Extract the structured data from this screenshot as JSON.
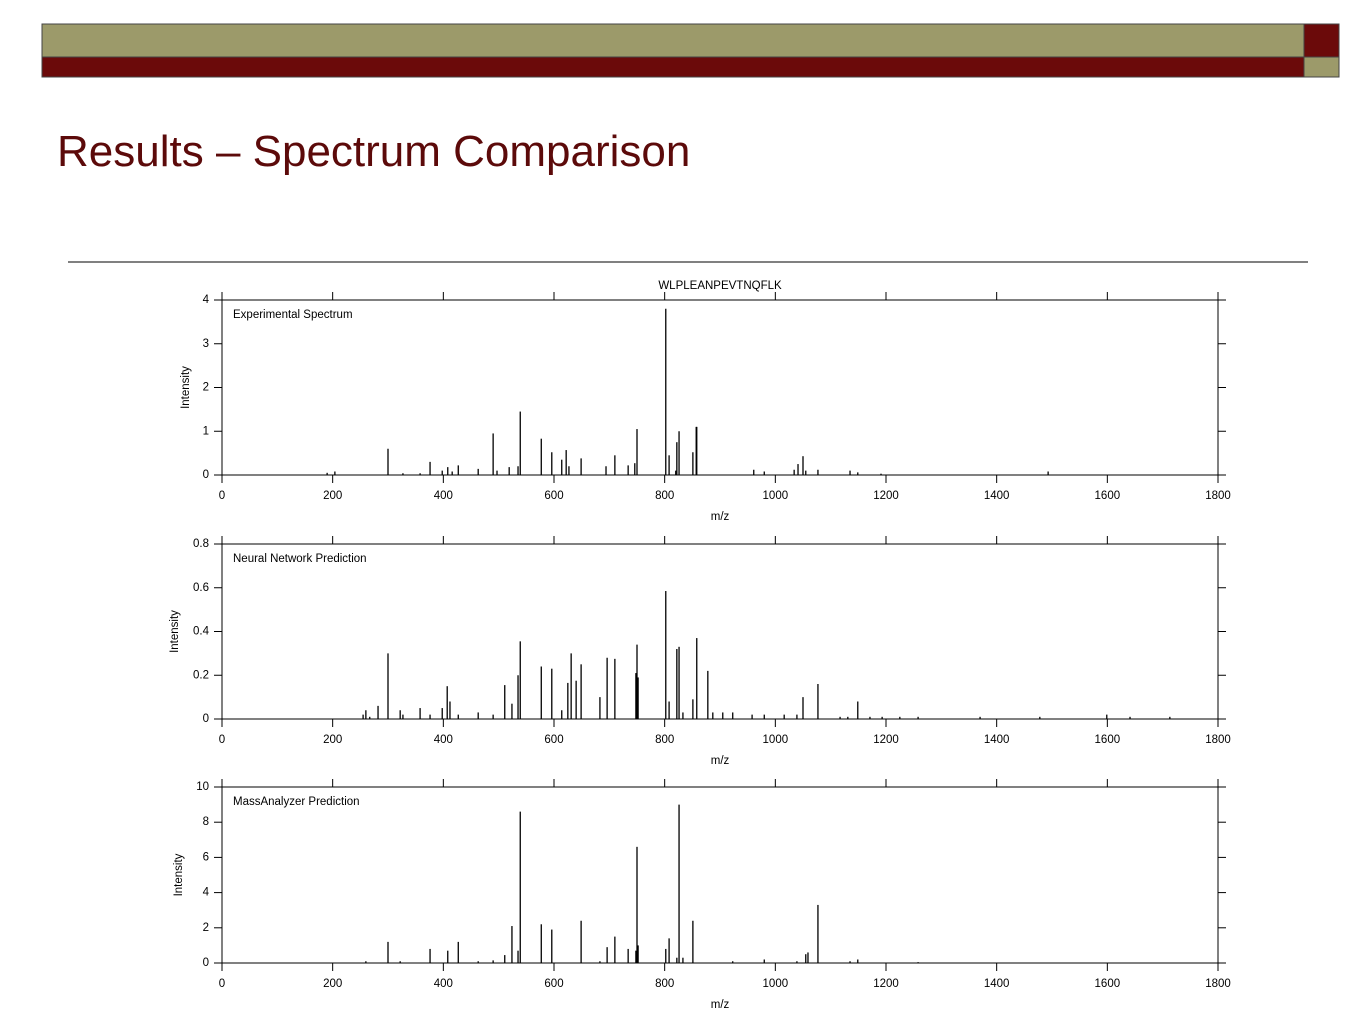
{
  "header": {
    "title": "Results – Spectrum Comparison"
  },
  "chart_data": [
    {
      "type": "stem",
      "title": "WLPLEANPEVTNQFLK",
      "annotation": "Experimental Spectrum",
      "x_label": "m/z",
      "y_label": "Intensity",
      "color": "#000000",
      "x": [
        190,
        204,
        300,
        327,
        358,
        376,
        398,
        408,
        416,
        427,
        463,
        490,
        497,
        519,
        535,
        539,
        577,
        596,
        614,
        622,
        627,
        649,
        694,
        710,
        734,
        746,
        750,
        802,
        808,
        820,
        822,
        826,
        851,
        857,
        858,
        961,
        980,
        1034,
        1041,
        1050,
        1055,
        1077,
        1135,
        1149,
        1191,
        1493
      ],
      "values": [
        0.05,
        0.08,
        0.6,
        0.04,
        0.04,
        0.3,
        0.1,
        0.18,
        0.08,
        0.22,
        0.14,
        0.95,
        0.1,
        0.18,
        0.2,
        1.45,
        0.83,
        0.52,
        0.35,
        0.57,
        0.2,
        0.38,
        0.2,
        0.45,
        0.22,
        0.27,
        1.05,
        3.8,
        0.45,
        0.1,
        0.75,
        1.0,
        0.52,
        1.1,
        1.1,
        0.12,
        0.08,
        0.12,
        0.25,
        0.43,
        0.1,
        0.12,
        0.1,
        0.06,
        0.03,
        0.08
      ],
      "xlim": [
        0,
        1800
      ],
      "xticks": [
        0,
        200,
        400,
        600,
        800,
        1000,
        1200,
        1400,
        1600,
        1800
      ],
      "ylim": [
        0,
        4
      ],
      "yticks": [
        0,
        1,
        2,
        3,
        4
      ]
    },
    {
      "type": "stem",
      "annotation": "Neural Network Prediction",
      "x_label": "m/z",
      "y_label": "Intensity",
      "color": "#000000",
      "x": [
        255,
        260,
        267,
        282,
        300,
        322,
        327,
        358,
        376,
        398,
        407,
        412,
        427,
        463,
        490,
        511,
        524,
        535,
        539,
        577,
        596,
        614,
        625,
        631,
        640,
        649,
        683,
        696,
        710,
        748,
        750,
        752,
        802,
        808,
        822,
        826,
        833,
        851,
        858,
        878,
        887,
        905,
        923,
        958,
        980,
        1016,
        1039,
        1050,
        1077,
        1117,
        1131,
        1149,
        1171,
        1193,
        1225,
        1258,
        1370,
        1478,
        1599,
        1641,
        1713
      ],
      "values": [
        0.02,
        0.04,
        0.01,
        0.06,
        0.3,
        0.04,
        0.02,
        0.05,
        0.02,
        0.05,
        0.15,
        0.08,
        0.02,
        0.03,
        0.02,
        0.155,
        0.07,
        0.2,
        0.355,
        0.24,
        0.23,
        0.04,
        0.165,
        0.3,
        0.175,
        0.25,
        0.1,
        0.28,
        0.275,
        0.21,
        0.34,
        0.19,
        0.585,
        0.08,
        0.32,
        0.33,
        0.03,
        0.09,
        0.37,
        0.22,
        0.03,
        0.03,
        0.03,
        0.02,
        0.02,
        0.02,
        0.02,
        0.1,
        0.16,
        0.01,
        0.01,
        0.08,
        0.01,
        0.01,
        0.01,
        0.01,
        0.01,
        0.01,
        0.02,
        0.01,
        0.01
      ],
      "xlim": [
        0,
        1800
      ],
      "xticks": [
        0,
        200,
        400,
        600,
        800,
        1000,
        1200,
        1400,
        1600,
        1800
      ],
      "ylim": [
        0,
        0.8
      ],
      "yticks": [
        0,
        0.2,
        0.4,
        0.6,
        0.8
      ]
    },
    {
      "type": "stem",
      "annotation": "MassAnalyzer Prediction",
      "x_label": "m/z",
      "y_label": "Intensity",
      "color": "#000000",
      "x": [
        260,
        300,
        322,
        376,
        408,
        427,
        463,
        490,
        511,
        524,
        535,
        539,
        577,
        596,
        649,
        683,
        696,
        710,
        734,
        748,
        750,
        752,
        802,
        808,
        822,
        826,
        833,
        851,
        923,
        980,
        1039,
        1055,
        1059,
        1077,
        1135,
        1149,
        1258
      ],
      "values": [
        0.1,
        1.2,
        0.1,
        0.8,
        0.7,
        1.2,
        0.1,
        0.15,
        0.45,
        2.1,
        0.7,
        8.6,
        2.2,
        1.9,
        2.4,
        0.1,
        0.9,
        1.5,
        0.8,
        0.7,
        6.6,
        1.0,
        0.8,
        1.4,
        0.3,
        9.0,
        0.3,
        2.4,
        0.1,
        0.2,
        0.1,
        0.5,
        0.6,
        3.3,
        0.1,
        0.2,
        0.05
      ],
      "xlim": [
        0,
        1800
      ],
      "xticks": [
        0,
        200,
        400,
        600,
        800,
        1000,
        1200,
        1400,
        1600,
        1800
      ],
      "ylim": [
        0,
        10
      ],
      "yticks": [
        0,
        2,
        4,
        6,
        8,
        10
      ]
    }
  ]
}
